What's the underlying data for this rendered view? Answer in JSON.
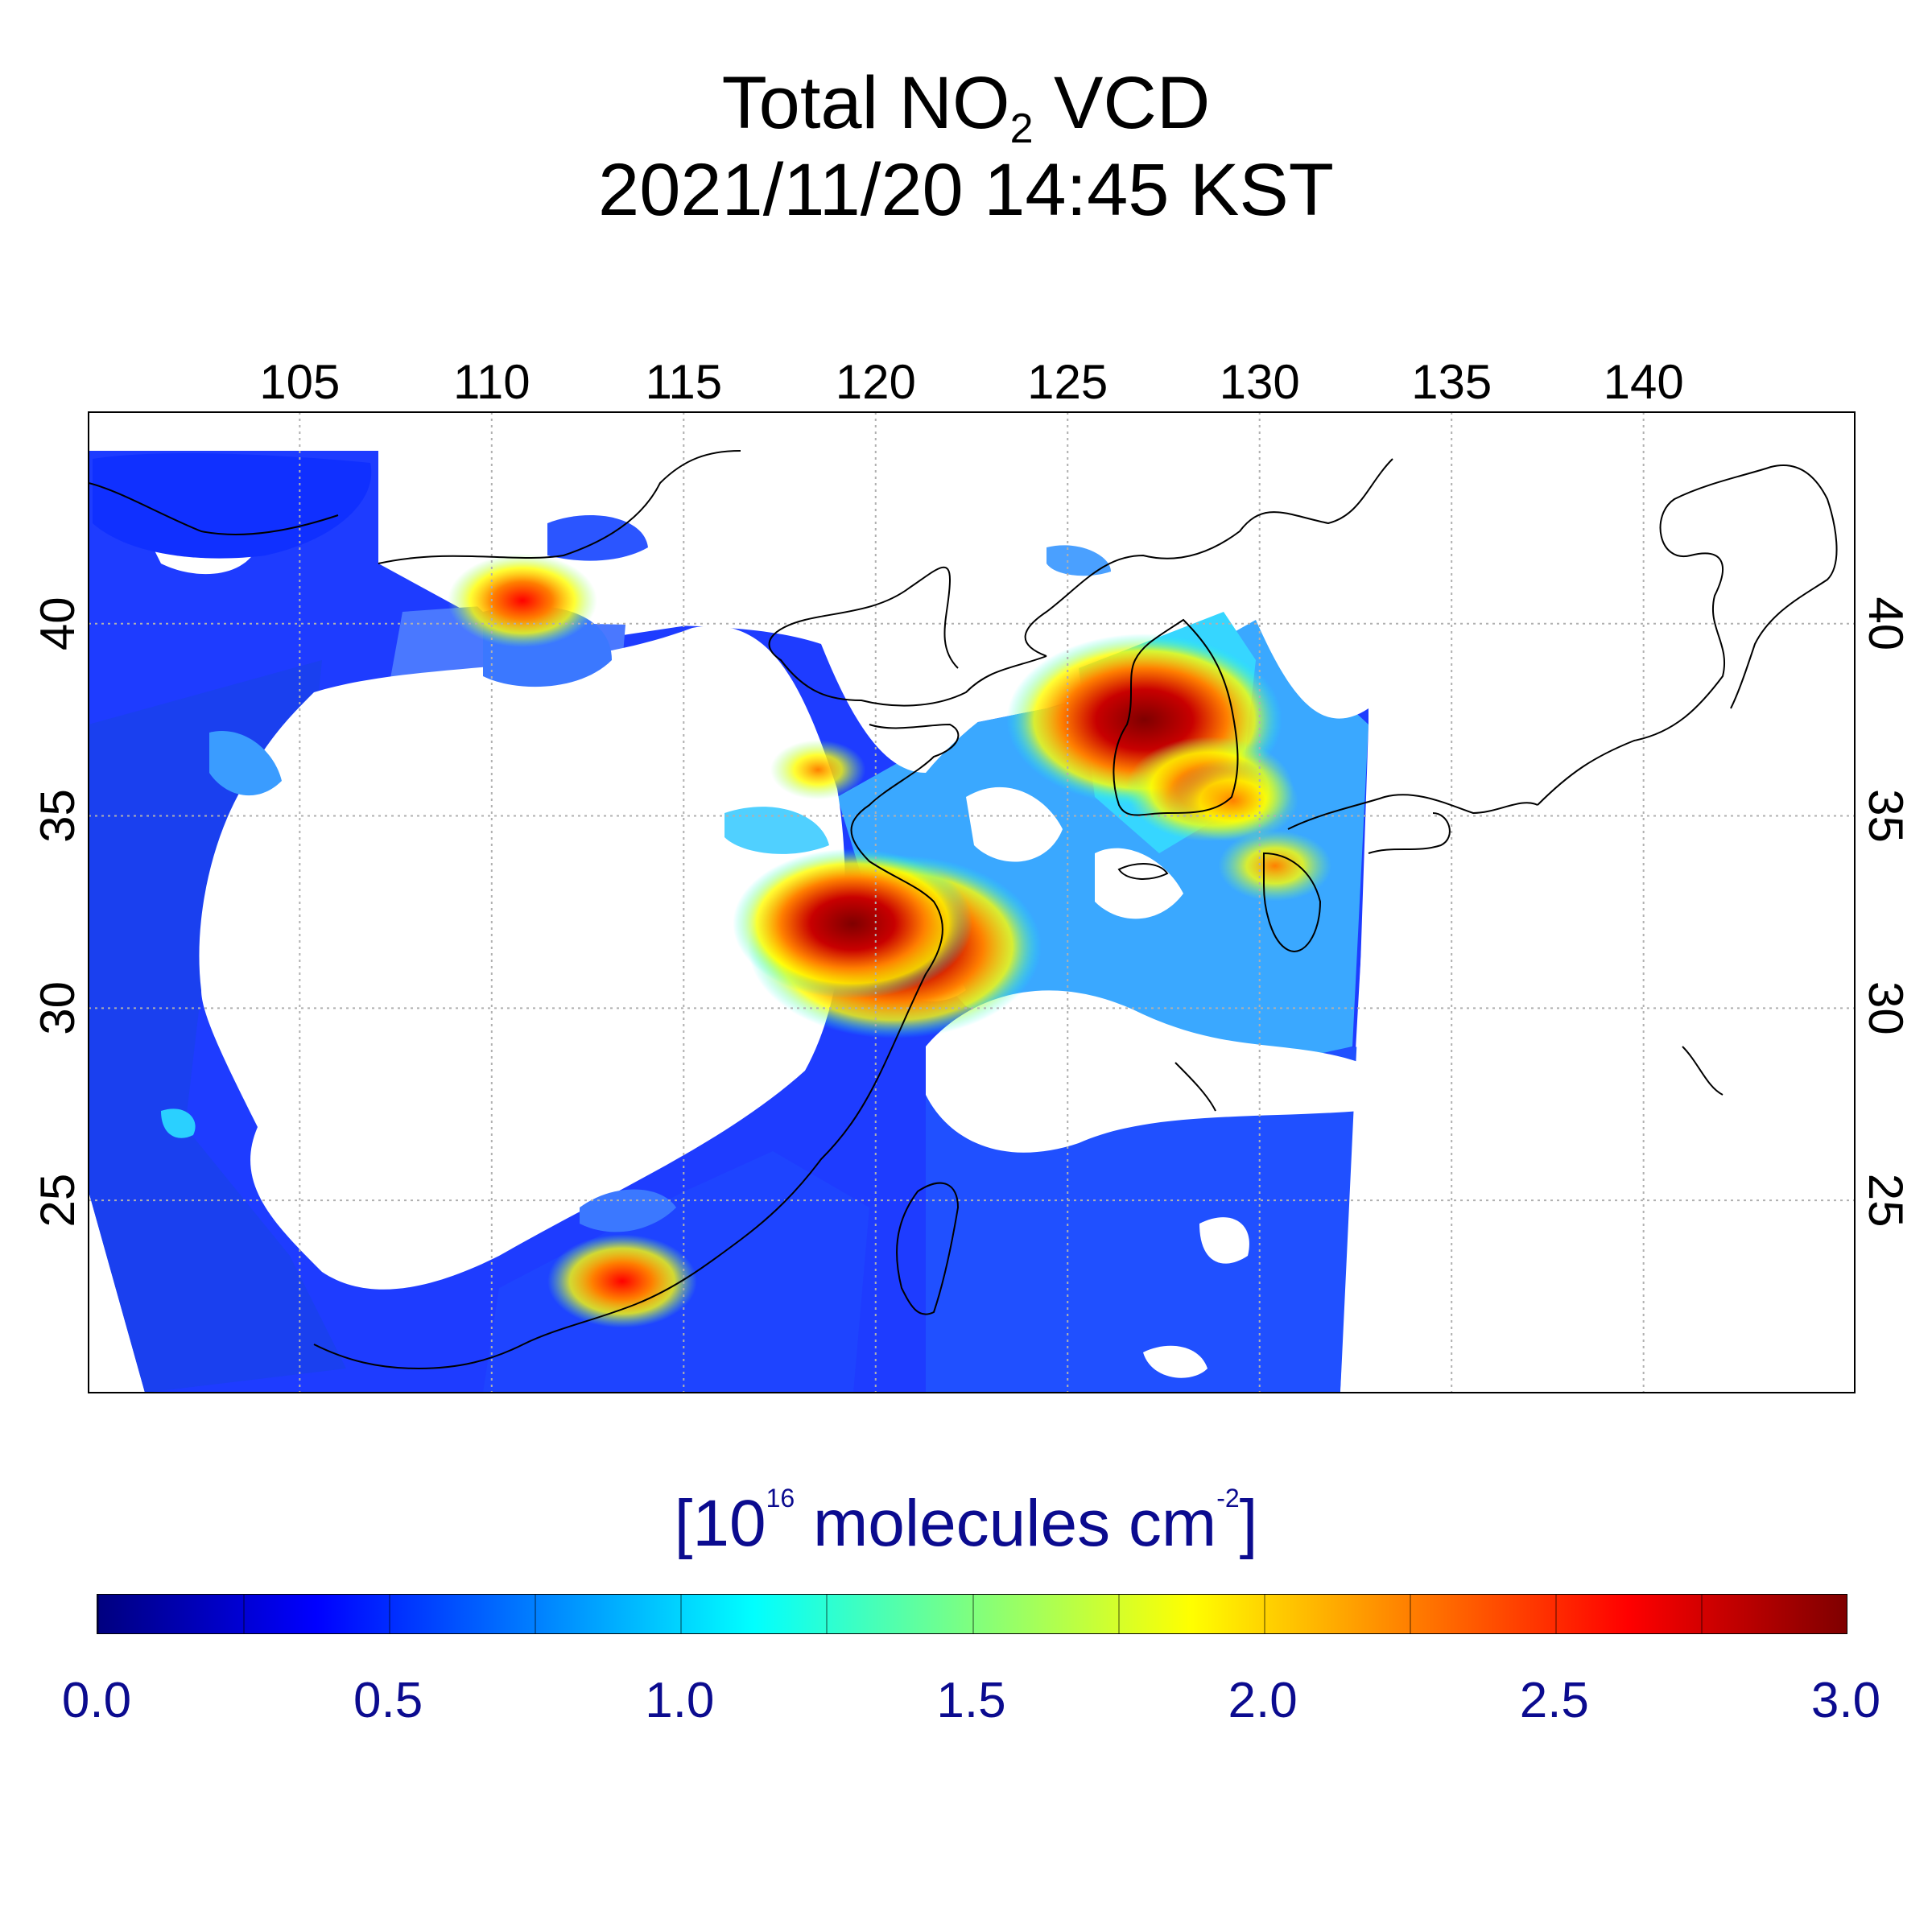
{
  "title": {
    "line1_pre": "Total NO",
    "line1_sub": "2",
    "line1_post": " VCD",
    "line2": "2021/11/20 14:45 KST"
  },
  "map": {
    "lon_range": [
      99.5,
      145.5
    ],
    "lat_range": [
      20,
      45.5
    ],
    "lon_ticks": [
      "105",
      "110",
      "115",
      "120",
      "125",
      "130",
      "135",
      "140"
    ],
    "lat_ticks": [
      "40",
      "35",
      "30",
      "25"
    ],
    "gridlines": true,
    "hotspots": [
      {
        "lon": 120.5,
        "lat": 31.6,
        "value": 3.0
      },
      {
        "lon": 119.4,
        "lat": 32.2,
        "value": 2.7
      },
      {
        "lon": 127.0,
        "lat": 37.5,
        "value": 2.9
      },
      {
        "lon": 128.7,
        "lat": 35.7,
        "value": 2.3
      },
      {
        "lon": 129.3,
        "lat": 35.4,
        "value": 2.1
      },
      {
        "lon": 110.8,
        "lat": 40.6,
        "value": 2.2
      },
      {
        "lon": 113.4,
        "lat": 22.9,
        "value": 2.2
      },
      {
        "lon": 130.4,
        "lat": 33.7,
        "value": 2.0
      },
      {
        "lon": 118.5,
        "lat": 36.2,
        "value": 1.9
      }
    ]
  },
  "colorbar": {
    "unit_pre": "[10",
    "unit_sup": "16",
    "unit_mid": " molecules cm",
    "unit_sup2": "-2",
    "unit_post": "]",
    "min": 0.0,
    "max": 3.0,
    "tick_labels": [
      "0.0",
      "0.5",
      "1.0",
      "1.5",
      "2.0",
      "2.5",
      "3.0"
    ],
    "colors": [
      "#00007f",
      "#0000ff",
      "#007fff",
      "#00ffff",
      "#7fff7f",
      "#ffff00",
      "#ff7f00",
      "#ff0000",
      "#7f0000"
    ]
  }
}
